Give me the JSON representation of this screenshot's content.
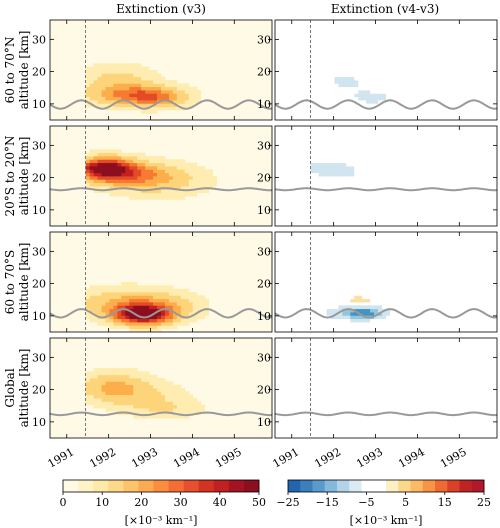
{
  "chart_data": {
    "type": "heatmap",
    "columns": [
      "Extinction (v3)",
      "Extinction (v4-v3)"
    ],
    "rows": [
      {
        "label_line1": "60 to 70°N",
        "label_line2": "altitude [km]"
      },
      {
        "label_line1": "20°S to 20°N",
        "label_line2": "altitude [km]"
      },
      {
        "label_line1": "60 to 70°S",
        "label_line2": "altitude [km]"
      },
      {
        "label_line1": "Global",
        "label_line2": "altitude [km]"
      }
    ],
    "x_ticks": [
      "1991",
      "1992",
      "1993",
      "1994",
      "1995"
    ],
    "xlim": [
      1990.6,
      1995.9
    ],
    "ylim": [
      5,
      36
    ],
    "y_ticks": [
      "10",
      "20",
      "30"
    ],
    "eruption_line_x": 1991.45,
    "left_panels": [
      {
        "tropopause_mean": 9.8,
        "tropopause_amp": 1.3,
        "blobs": [
          {
            "x": 1992.5,
            "y": 13,
            "sx": 0.7,
            "sy": 2.2,
            "v": 14
          },
          {
            "x": 1992.2,
            "y": 18,
            "sx": 0.6,
            "sy": 3,
            "v": 6
          },
          {
            "x": 1993.1,
            "y": 12,
            "sx": 0.5,
            "sy": 2,
            "v": 12
          }
        ]
      },
      {
        "tropopause_mean": 16.4,
        "tropopause_amp": 0.3,
        "blobs": [
          {
            "x": 1991.9,
            "y": 23,
            "sx": 0.45,
            "sy": 2.2,
            "v": 32
          },
          {
            "x": 1992.5,
            "y": 21,
            "sx": 0.7,
            "sy": 2.5,
            "v": 14
          },
          {
            "x": 1993.2,
            "y": 19,
            "sx": 0.8,
            "sy": 3.5,
            "v": 6
          }
        ]
      },
      {
        "tropopause_mean": 10.8,
        "tropopause_amp": 1.3,
        "blobs": [
          {
            "x": 1992.8,
            "y": 10.5,
            "sx": 0.45,
            "sy": 2,
            "v": 36
          },
          {
            "x": 1992.3,
            "y": 14,
            "sx": 0.7,
            "sy": 3,
            "v": 10
          },
          {
            "x": 1993.3,
            "y": 13,
            "sx": 0.6,
            "sy": 3,
            "v": 8
          }
        ]
      },
      {
        "tropopause_mean": 12.5,
        "tropopause_amp": 0.4,
        "blobs": [
          {
            "x": 1992.1,
            "y": 21,
            "sx": 0.55,
            "sy": 3,
            "v": 10
          },
          {
            "x": 1992.8,
            "y": 18,
            "sx": 0.7,
            "sy": 3,
            "v": 5
          },
          {
            "x": 1993.4,
            "y": 14,
            "sx": 0.6,
            "sy": 2,
            "v": 4
          }
        ]
      }
    ],
    "right_panels": [
      {
        "tropopause_mean": 9.8,
        "tropopause_amp": 1.3,
        "blobs": [
          {
            "x": 1992.3,
            "y": 17,
            "sx": 0.4,
            "sy": 2.5,
            "v": -4
          },
          {
            "x": 1992.9,
            "y": 12,
            "sx": 0.4,
            "sy": 1.5,
            "v": -5
          },
          {
            "x": 1992.1,
            "y": 11,
            "sx": 0.3,
            "sy": 1.2,
            "v": 3
          }
        ]
      },
      {
        "tropopause_mean": 16.4,
        "tropopause_amp": 0.3,
        "blobs": [
          {
            "x": 1991.9,
            "y": 23,
            "sx": 0.35,
            "sy": 1.5,
            "v": -8
          },
          {
            "x": 1992.6,
            "y": 20,
            "sx": 0.5,
            "sy": 2,
            "v": -3
          },
          {
            "x": 1992.3,
            "y": 14,
            "sx": 0.8,
            "sy": 3,
            "v": 2.5
          }
        ]
      },
      {
        "tropopause_mean": 10.8,
        "tropopause_amp": 1.3,
        "blobs": [
          {
            "x": 1992.8,
            "y": 11,
            "sx": 0.3,
            "sy": 1.2,
            "v": -18
          },
          {
            "x": 1992.3,
            "y": 11,
            "sx": 0.35,
            "sy": 1.5,
            "v": -8
          },
          {
            "x": 1992.6,
            "y": 15,
            "sx": 0.4,
            "sy": 1.5,
            "v": 4
          },
          {
            "x": 1992.7,
            "y": 21,
            "sx": 0.3,
            "sy": 2,
            "v": -3
          }
        ]
      },
      {
        "tropopause_mean": 12.5,
        "tropopause_amp": 0.4,
        "blobs": [
          {
            "x": 1992.0,
            "y": 20,
            "sx": 0.5,
            "sy": 2.5,
            "v": -2.5
          },
          {
            "x": 1993.3,
            "y": 13,
            "sx": 0.5,
            "sy": 1.5,
            "v": 2
          }
        ]
      }
    ],
    "colorbar_left": {
      "ticks": [
        "0",
        "10",
        "20",
        "30",
        "40",
        "50"
      ],
      "min": 0,
      "max": 50,
      "label": "[×10⁻³ km⁻¹]"
    },
    "colorbar_right": {
      "ticks": [
        "−25",
        "−15",
        "−5",
        "5",
        "15",
        "25"
      ],
      "min": -25,
      "max": 25,
      "label": "[×10⁻³ km⁻¹]"
    },
    "colors": {
      "tropopause": "#999999",
      "background": "#fffae6",
      "eruption_line": "#555555"
    }
  }
}
